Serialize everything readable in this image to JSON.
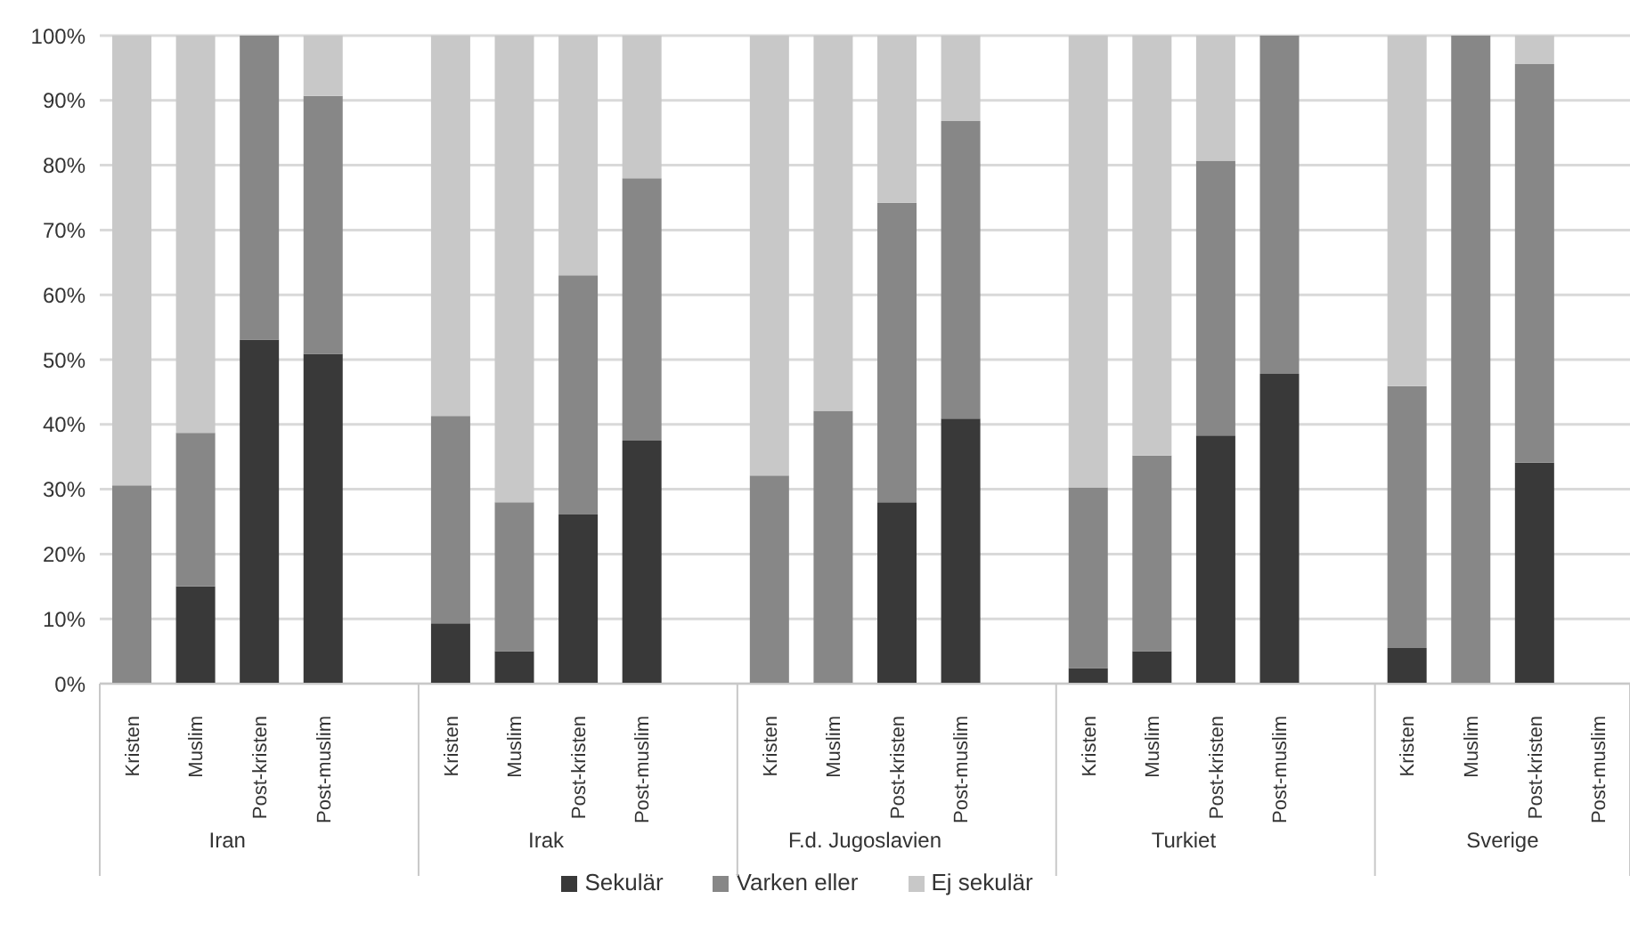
{
  "chart_data": {
    "type": "bar",
    "stacked": true,
    "categories": [
      "Kristen",
      "Muslim",
      "Post-kristen",
      "Post-muslim",
      null,
      "Kristen",
      "Muslim",
      "Post-kristen",
      "Post-muslim",
      null,
      "Kristen",
      "Muslim",
      "Post-kristen",
      "Post-muslim",
      null,
      "Kristen",
      "Muslim",
      "Post-kristen",
      "Post-muslim",
      null,
      "Kristen",
      "Muslim",
      "Post-kristen",
      "Post-muslim"
    ],
    "series": [
      {
        "name": "Sekulär",
        "color": "#393939",
        "values": [
          0,
          15,
          53.1,
          50.9,
          null,
          9.3,
          5,
          26.1,
          37.5,
          null,
          0,
          0,
          28,
          40.9,
          null,
          2.4,
          5,
          38.3,
          47.8,
          null,
          5.5,
          0,
          34.1,
          null
        ]
      },
      {
        "name": "Varken eller",
        "color": "#878787",
        "values": [
          30.6,
          23.7,
          46.9,
          39.8,
          null,
          32,
          23,
          36.9,
          40.5,
          null,
          32.1,
          42.1,
          46.2,
          45.9,
          null,
          27.9,
          30.2,
          42.4,
          52.2,
          null,
          40.4,
          100,
          61.5,
          null
        ]
      },
      {
        "name": "Ej sekulär",
        "color": "#c8c8c8",
        "values": [
          69.4,
          61.3,
          0,
          9.3,
          null,
          58.7,
          72,
          37,
          22,
          null,
          67.9,
          57.9,
          25.8,
          13.2,
          null,
          69.7,
          64.8,
          19.3,
          0,
          null,
          54.1,
          0,
          4.4,
          null
        ]
      }
    ],
    "ylim": [
      0,
      100
    ],
    "yticks": [
      {
        "value": 0,
        "label": "0%"
      },
      {
        "value": 10,
        "label": "10%"
      },
      {
        "value": 20,
        "label": "20%"
      },
      {
        "value": 30,
        "label": "30%"
      },
      {
        "value": 40,
        "label": "40%"
      },
      {
        "value": 50,
        "label": "50%"
      },
      {
        "value": 60,
        "label": "60%"
      },
      {
        "value": 70,
        "label": "70%"
      },
      {
        "value": 80,
        "label": "80%"
      },
      {
        "value": 90,
        "label": "90%"
      },
      {
        "value": 100,
        "label": "100%"
      }
    ],
    "annotations": [
      "Iran",
      "Irak",
      "F.d. Jugoslavien",
      "Turkiet",
      "Sverige"
    ],
    "grid": "y",
    "legend": "bottom"
  }
}
